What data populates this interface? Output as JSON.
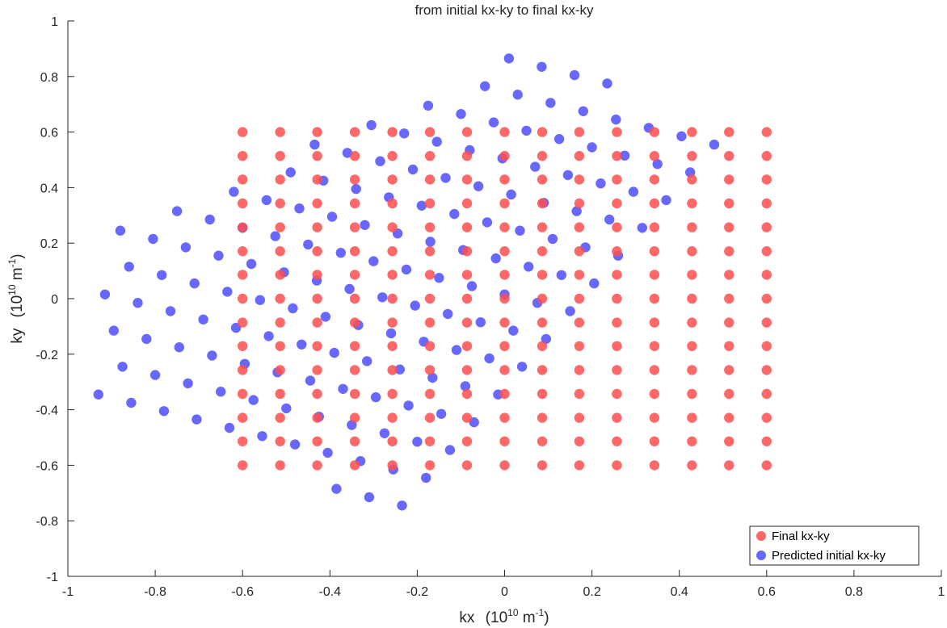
{
  "chart_data": {
    "type": "scatter",
    "title": "from initial kx-ky to final kx-ky",
    "xlabel": {
      "base": "kx",
      "unit_base": "(10",
      "unit_exp": "10",
      "unit_mid": " m",
      "unit_exp2": "-1",
      "unit_close": ")"
    },
    "ylabel": {
      "base": "ky",
      "unit_base": "(10",
      "unit_exp": "10",
      "unit_mid": " m",
      "unit_exp2": "-1",
      "unit_close": ")"
    },
    "xlim": [
      -1,
      1
    ],
    "ylim": [
      -1,
      1
    ],
    "xticks": [
      -1,
      -0.8,
      -0.6,
      -0.4,
      -0.2,
      0,
      0.2,
      0.4,
      0.6,
      0.8,
      1
    ],
    "yticks": [
      -1,
      -0.8,
      -0.6,
      -0.4,
      -0.2,
      0,
      0.2,
      0.4,
      0.6,
      0.8,
      1
    ],
    "xtick_labels": [
      "-1",
      "-0.8",
      "-0.6",
      "-0.4",
      "-0.2",
      "0",
      "0.2",
      "0.4",
      "0.6",
      "0.8",
      "1"
    ],
    "ytick_labels": [
      "-1",
      "-0.8",
      "-0.6",
      "-0.4",
      "-0.2",
      "0",
      "0.2",
      "0.4",
      "0.6",
      "0.8",
      "1"
    ],
    "grid": false,
    "legend_position": "bottom-right",
    "series": [
      {
        "name": "Final kx-ky",
        "color": "#ff4d4d",
        "grid_values": [
          -0.6,
          -0.514,
          -0.429,
          -0.343,
          -0.257,
          -0.171,
          -0.086,
          0,
          0.086,
          0.171,
          0.257,
          0.343,
          0.429,
          0.514,
          0.6
        ]
      },
      {
        "name": "Predicted initial kx-ky",
        "color": "#4d4dff",
        "lattice_origin": [
          -0.6,
          0.255
        ],
        "basis_a": [
          0.055,
          0.1
        ],
        "basis_b": [
          0.075,
          -0.03
        ],
        "index_range": [
          -10,
          10
        ]
      }
    ]
  }
}
